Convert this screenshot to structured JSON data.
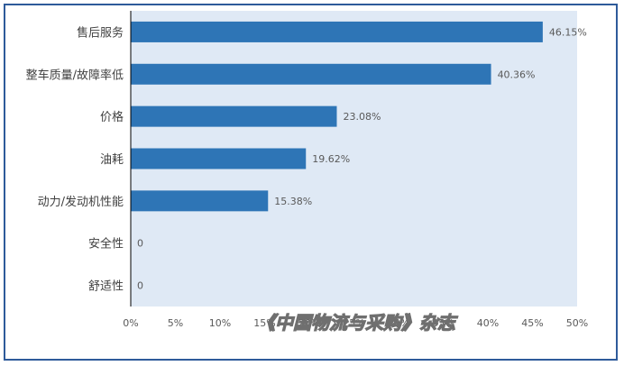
{
  "chart_data": {
    "type": "bar",
    "orientation": "horizontal",
    "categories": [
      "售后服务",
      "整车质量/故障率低",
      "价格",
      "油耗",
      "动力/发动机性能",
      "安全性",
      "舒适性"
    ],
    "values": [
      46.15,
      40.36,
      23.08,
      19.62,
      15.38,
      0,
      0
    ],
    "value_labels": [
      "46.15%",
      "40.36%",
      "23.08%",
      "19.62%",
      "15.38%",
      "0",
      "0"
    ],
    "xlim": [
      0,
      50
    ],
    "x_ticks": [
      "0%",
      "5%",
      "10%",
      "15%",
      "20%",
      "25%",
      "30%",
      "35%",
      "40%",
      "45%",
      "50%"
    ],
    "grid": false,
    "colors": {
      "bar": "#2e75b6",
      "plot_background": "#dfe9f5",
      "frame": "#2e5b9a"
    }
  },
  "watermark": "《中国物流与采购》杂志"
}
